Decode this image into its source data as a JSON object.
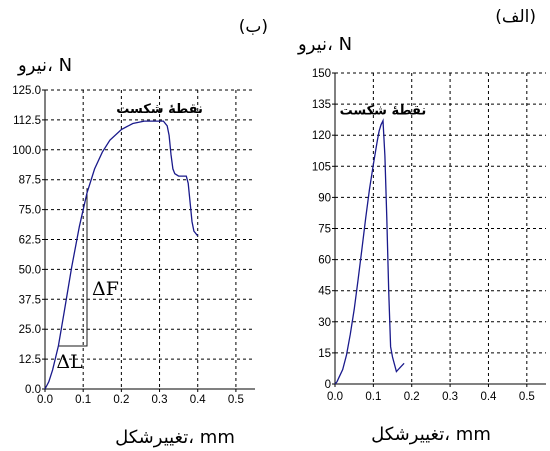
{
  "chart_data": [
    {
      "type": "line",
      "panel_label": "(ب)",
      "ylabel": "نیرو، N",
      "xlabel": "تغییرشکل، mm",
      "xlim": [
        0,
        0.55
      ],
      "ylim": [
        0,
        125
      ],
      "x_ticks": [
        "0.0",
        "0.1",
        "0.2",
        "0.3",
        "0.4",
        "0.5"
      ],
      "x_tick_values": [
        0,
        0.1,
        0.2,
        0.3,
        0.4,
        0.5
      ],
      "y_ticks": [
        "0.0",
        "12.5",
        "25.0",
        "37.5",
        "50.0",
        "62.5",
        "75.0",
        "87.5",
        "100.0",
        "112.5",
        "125.0"
      ],
      "y_tick_values": [
        0,
        12.5,
        25,
        37.5,
        50,
        62.5,
        75,
        87.5,
        100,
        112.5,
        125
      ],
      "grid": true,
      "annotation": {
        "text": "نقطهٔ شکست",
        "x": 0.3,
        "y": 112
      },
      "triangle": {
        "x0": 0.035,
        "x1": 0.11,
        "y0": 18,
        "y1": 84,
        "dx_label": "ΔL",
        "dy_label": "ΔF"
      },
      "series": [
        {
          "x": [
            0.0,
            0.01,
            0.02,
            0.035,
            0.05,
            0.07,
            0.09,
            0.11,
            0.13,
            0.15,
            0.17,
            0.2,
            0.23,
            0.26,
            0.28,
            0.3,
            0.31,
            0.32,
            0.325,
            0.33,
            0.335,
            0.34,
            0.35,
            0.36,
            0.365,
            0.37,
            0.375,
            0.38,
            0.385,
            0.39,
            0.395,
            0.4
          ],
          "y": [
            0,
            3,
            8,
            18,
            32,
            51,
            68,
            82,
            92,
            99,
            104,
            108.5,
            111,
            112,
            112,
            112,
            112,
            110,
            106,
            98,
            92,
            90,
            89,
            89,
            89,
            89,
            86,
            78,
            70,
            66,
            65,
            64
          ]
        }
      ]
    },
    {
      "type": "line",
      "panel_label": "(الف)",
      "ylabel": "نیرو، N",
      "xlabel": "تغییرشکل، mm",
      "xlim": [
        0,
        0.55
      ],
      "ylim": [
        0,
        150
      ],
      "x_ticks": [
        "0.0",
        "0.1",
        "0.2",
        "0.3",
        "0.4",
        "0.5"
      ],
      "x_tick_values": [
        0,
        0.1,
        0.2,
        0.3,
        0.4,
        0.5
      ],
      "y_ticks": [
        "0",
        "15",
        "30",
        "45",
        "60",
        "75",
        "90",
        "105",
        "120",
        "135",
        "150"
      ],
      "y_tick_values": [
        0,
        15,
        30,
        45,
        60,
        75,
        90,
        105,
        120,
        135,
        150
      ],
      "grid": true,
      "annotation": {
        "text": "نقطهٔ شکست",
        "x": 0.125,
        "y": 127
      },
      "series": [
        {
          "x": [
            0.0,
            0.005,
            0.01,
            0.02,
            0.03,
            0.04,
            0.05,
            0.06,
            0.07,
            0.08,
            0.09,
            0.1,
            0.11,
            0.115,
            0.12,
            0.125,
            0.13,
            0.135,
            0.14,
            0.145,
            0.15,
            0.16,
            0.165,
            0.17,
            0.18
          ],
          "y": [
            0,
            1,
            3,
            7,
            14,
            24,
            36,
            50,
            65,
            80,
            94,
            106,
            117,
            122,
            125,
            127,
            110,
            80,
            45,
            18,
            13,
            6,
            7,
            8,
            10
          ]
        }
      ]
    }
  ]
}
